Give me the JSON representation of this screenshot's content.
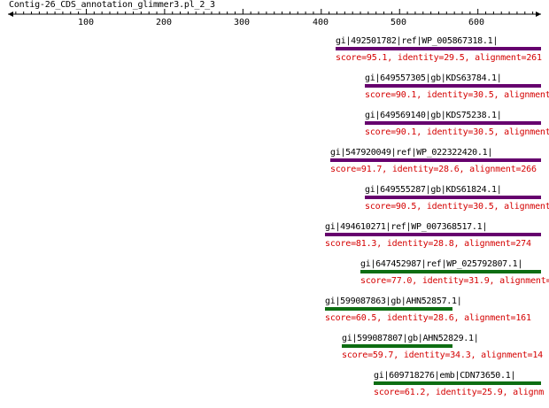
{
  "title": "Contig-26_CDS_annotation_glimmer3.pl_2_3",
  "ruler": {
    "tick_labels": [
      "100",
      "200",
      "300",
      "400",
      "500",
      "600"
    ]
  },
  "colors": {
    "purple_bar": "#66006e",
    "green_bar": "#0d6d12",
    "score_text": "#d40000",
    "axis": "#000000"
  },
  "hits": [
    {
      "name": "gi|492501782|ref|WP_005867318.1|",
      "score": "score=95.1, identity=29.5, alignment=261",
      "bar_color": "purple"
    },
    {
      "name": "gi|649557305|gb|KDS63784.1|",
      "score": "score=90.1, identity=30.5, alignment=",
      "bar_color": "purple"
    },
    {
      "name": "gi|649569140|gb|KDS75238.1|",
      "score": "score=90.1, identity=30.5, alignment=",
      "bar_color": "purple"
    },
    {
      "name": "gi|547920049|ref|WP_022322420.1|",
      "score": "score=91.7, identity=28.6, alignment=266",
      "bar_color": "purple"
    },
    {
      "name": "gi|649555287|gb|KDS61824.1|",
      "score": "score=90.5, identity=30.5, alignment=",
      "bar_color": "purple"
    },
    {
      "name": "gi|494610271|ref|WP_007368517.1|",
      "score": "score=81.3, identity=28.8, alignment=274",
      "bar_color": "purple"
    },
    {
      "name": "gi|647452987|ref|WP_025792807.1|",
      "score": "score=77.0, identity=31.9, alignment=",
      "bar_color": "green"
    },
    {
      "name": "gi|599087863|gb|AHN52857.1|",
      "score": "score=60.5, identity=28.6, alignment=161",
      "bar_color": "green"
    },
    {
      "name": "gi|599087807|gb|AHN52829.1|",
      "score": "score=59.7, identity=34.3, alignment=14",
      "bar_color": "green"
    },
    {
      "name": "gi|609718276|emb|CDN73650.1|",
      "score": "score=61.2, identity=25.9, alignm",
      "bar_color": "green"
    }
  ]
}
